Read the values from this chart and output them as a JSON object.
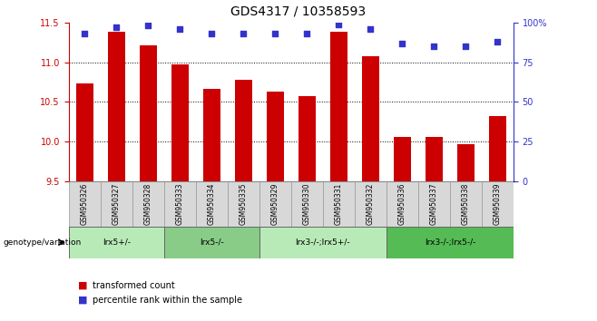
{
  "title": "GDS4317 / 10358593",
  "samples": [
    "GSM950326",
    "GSM950327",
    "GSM950328",
    "GSM950333",
    "GSM950334",
    "GSM950335",
    "GSM950329",
    "GSM950330",
    "GSM950331",
    "GSM950332",
    "GSM950336",
    "GSM950337",
    "GSM950338",
    "GSM950339"
  ],
  "bar_values": [
    10.73,
    11.38,
    11.21,
    10.97,
    10.66,
    10.78,
    10.63,
    10.57,
    11.38,
    11.08,
    10.06,
    10.06,
    9.97,
    10.32
  ],
  "dot_values": [
    93,
    97,
    98,
    96,
    93,
    93,
    93,
    93,
    99,
    96,
    87,
    85,
    85,
    88
  ],
  "bar_color": "#cc0000",
  "dot_color": "#3333cc",
  "ylim_left": [
    9.5,
    11.5
  ],
  "ylim_right": [
    0,
    100
  ],
  "yticks_left": [
    9.5,
    10.0,
    10.5,
    11.0,
    11.5
  ],
  "yticks_right": [
    0,
    25,
    50,
    75,
    100
  ],
  "ytick_labels_right": [
    "0",
    "25",
    "50",
    "75",
    "100%"
  ],
  "groups": [
    {
      "label": "lrx5+/-",
      "start": 0,
      "end": 3,
      "color": "#b8eab8"
    },
    {
      "label": "lrx5-/-",
      "start": 3,
      "end": 6,
      "color": "#88cc88"
    },
    {
      "label": "lrx3-/-;lrx5+/-",
      "start": 6,
      "end": 10,
      "color": "#b8eab8"
    },
    {
      "label": "lrx3-/-;lrx5-/-",
      "start": 10,
      "end": 14,
      "color": "#55bb55"
    }
  ],
  "legend_bar_label": "transformed count",
  "legend_dot_label": "percentile rank within the sample",
  "genotype_label": "genotype/variation",
  "bar_width": 0.55,
  "title_fontsize": 10,
  "tick_fontsize": 7,
  "sample_fontsize": 5.5
}
